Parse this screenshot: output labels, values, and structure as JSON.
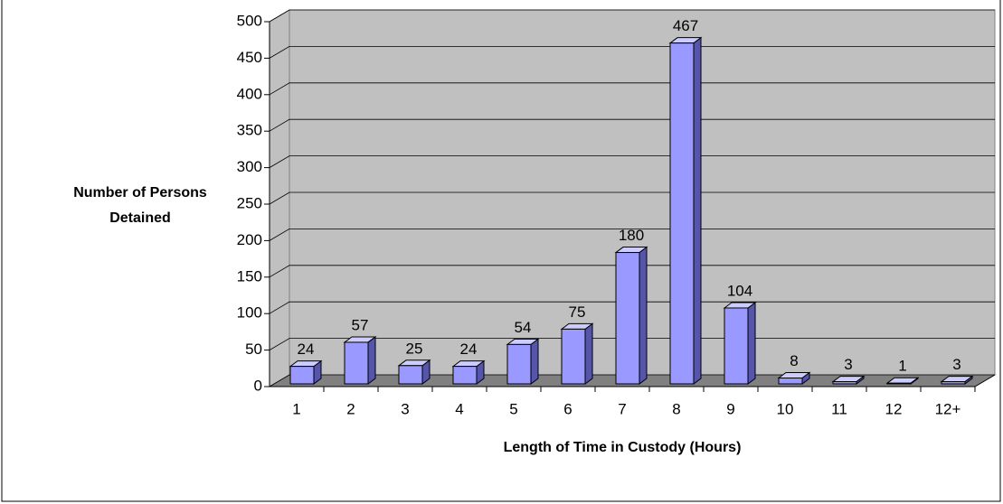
{
  "chart_data": {
    "type": "bar3d",
    "y_label": [
      "Number of Persons",
      "Detained"
    ],
    "x_label": "Length of Time in Custody (Hours)",
    "categories": [
      "1",
      "2",
      "3",
      "4",
      "5",
      "6",
      "7",
      "8",
      "9",
      "10",
      "11",
      "12",
      "12+"
    ],
    "values": [
      24,
      57,
      25,
      24,
      54,
      75,
      180,
      467,
      104,
      8,
      3,
      1,
      3
    ],
    "color": "#9999ff",
    "ylim": [
      0,
      500
    ],
    "yticks": [
      0,
      50,
      100,
      150,
      200,
      250,
      300,
      350,
      400,
      450,
      500
    ],
    "grid": true
  }
}
